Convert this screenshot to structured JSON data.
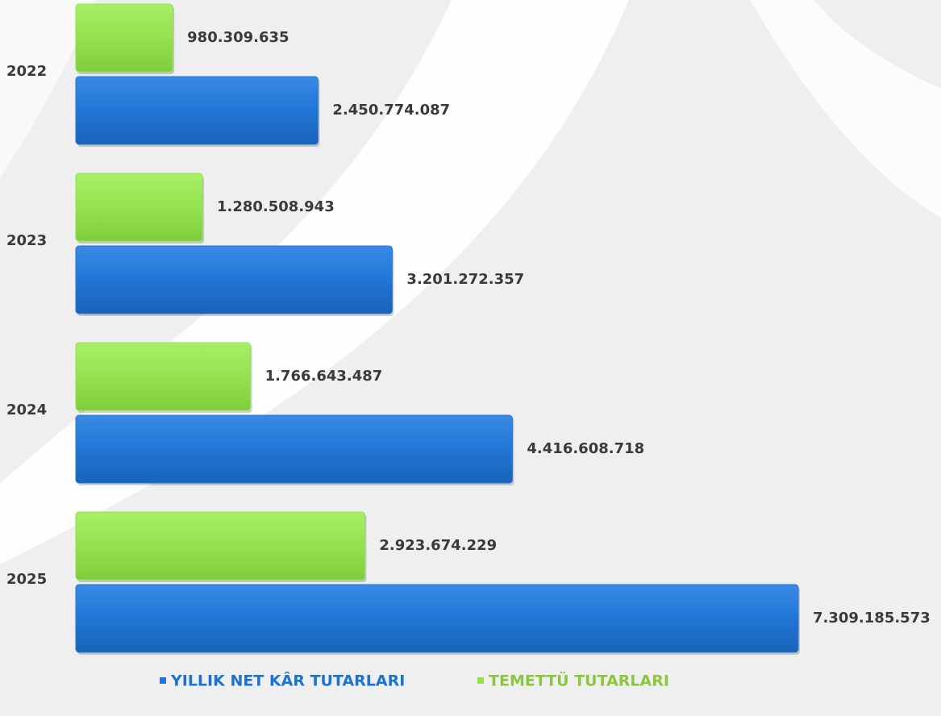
{
  "chart_data": {
    "type": "bar",
    "orientation": "horizontal",
    "categories": [
      "2022",
      "2023",
      "2024",
      "2025"
    ],
    "series": [
      {
        "name": "YILLIK NET KÂR TUTARLARI",
        "color": "#2176d6",
        "values": [
          2450774087,
          3201272357,
          4416608718,
          7309185573
        ],
        "value_labels": [
          "2.450.774.087",
          "3.201.272.357",
          "4.416.608.718",
          "7.309.185.573"
        ]
      },
      {
        "name": "TEMETTÜ TUTARLARI",
        "color": "#94e24f",
        "values": [
          980309635,
          1280508943,
          1766643487,
          2923674229
        ],
        "value_labels": [
          "980.309.635",
          "1.280.508.943",
          "1.766.643.487",
          "2.923.674.229"
        ]
      }
    ]
  }
}
